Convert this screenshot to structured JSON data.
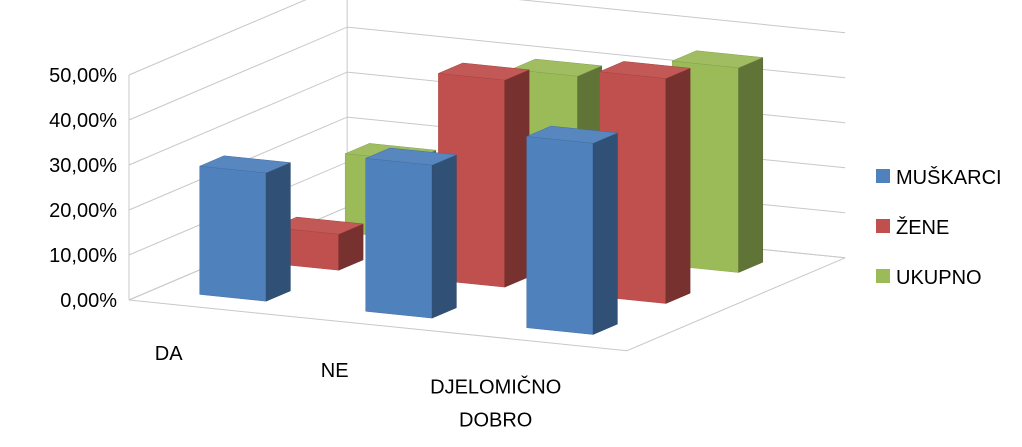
{
  "chart_data": {
    "type": "bar",
    "subtype": "3d-clustered-column",
    "categories": [
      "DA",
      "NE",
      "DJELOMIČNO DOBRO"
    ],
    "category_lines": [
      [
        "DA"
      ],
      [
        "NE"
      ],
      [
        "DJELOMIČNO",
        "DOBRO"
      ]
    ],
    "series": [
      {
        "name": "MUŠKARCI",
        "values": [
          28.5,
          34.0,
          42.5
        ],
        "color": "#4F81BD"
      },
      {
        "name": "ŽENE",
        "values": [
          8.0,
          46.0,
          50.0
        ],
        "color": "#C0504D"
      },
      {
        "name": "UKUPNO",
        "values": [
          17.5,
          40.0,
          45.5
        ],
        "color": "#9BBB59"
      }
    ],
    "y_ticks": [
      "0,00%",
      "10,00%",
      "20,00%",
      "30,00%",
      "40,00%",
      "50,00%"
    ],
    "ylim": [
      0,
      50
    ],
    "grid": true,
    "legend_position": "right"
  }
}
